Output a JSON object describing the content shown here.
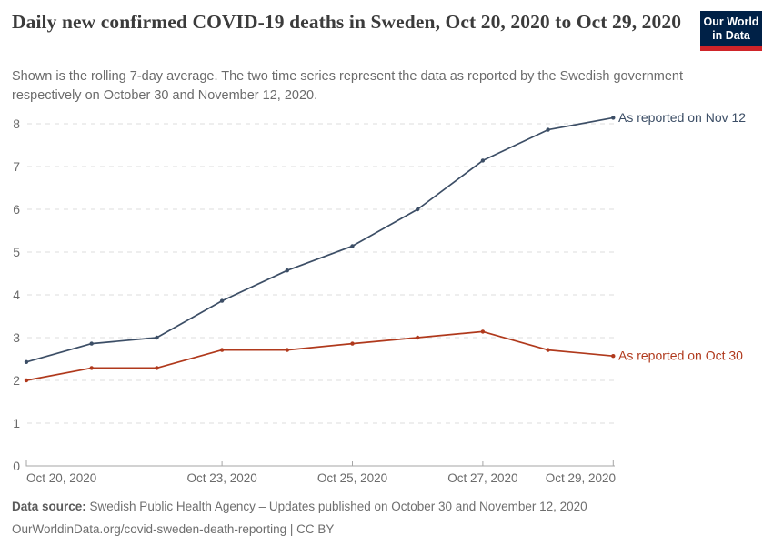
{
  "header": {
    "title": "Daily new confirmed COVID-19 deaths in Sweden, Oct 20, 2020 to Oct 29, 2020",
    "subtitle": "Shown is the rolling 7-day average. The two time series represent the data as reported by the Swedish government respectively on October 30 and November 12, 2020.",
    "logo": {
      "line1": "Our World",
      "line2": "in Data",
      "bg_color": "#002147",
      "stripe_color": "#cf2429"
    }
  },
  "chart_data": {
    "type": "line",
    "title": "Daily new confirmed COVID-19 deaths in Sweden, Oct 20, 2020 to Oct 29, 2020",
    "xlabel": "",
    "ylabel": "",
    "x": [
      "Oct 20, 2020",
      "Oct 21, 2020",
      "Oct 22, 2020",
      "Oct 23, 2020",
      "Oct 24, 2020",
      "Oct 25, 2020",
      "Oct 26, 2020",
      "Oct 27, 2020",
      "Oct 28, 2020",
      "Oct 29, 2020"
    ],
    "series": [
      {
        "name": "As reported on Nov 12",
        "color": "#3C4E66",
        "values": [
          2.43,
          2.86,
          3.0,
          3.86,
          4.57,
          5.14,
          6.0,
          7.14,
          7.86,
          8.14
        ]
      },
      {
        "name": "As reported on Oct 30",
        "color": "#B0391C",
        "values": [
          2.0,
          2.29,
          2.29,
          2.71,
          2.71,
          2.86,
          3.0,
          3.14,
          2.71,
          2.57
        ]
      }
    ],
    "ylim": [
      0,
      8
    ],
    "yticks": [
      0,
      1,
      2,
      3,
      4,
      5,
      6,
      7,
      8
    ],
    "x_ticks": [
      {
        "i": 0,
        "label": "Oct 20, 2020",
        "align": "start"
      },
      {
        "i": 3,
        "label": "Oct 23, 2020",
        "align": "middle"
      },
      {
        "i": 5,
        "label": "Oct 25, 2020",
        "align": "middle"
      },
      {
        "i": 7,
        "label": "Oct 27, 2020",
        "align": "middle"
      },
      {
        "i": 9,
        "label": "Oct 29, 2020",
        "align": "end"
      }
    ],
    "grid": "horizontal-dashed",
    "legend_position": "labels-at-line-ends",
    "grid_color": "#dedede",
    "axis_color": "#a6a6a6",
    "tick_label_color": "#6b6b6b"
  },
  "footer": {
    "data_source_label": "Data source:",
    "data_source_text": " Swedish Public Health Agency – Updates published on October 30 and November 12, 2020",
    "url_line": "OurWorldinData.org/covid-sweden-death-reporting | CC BY"
  }
}
